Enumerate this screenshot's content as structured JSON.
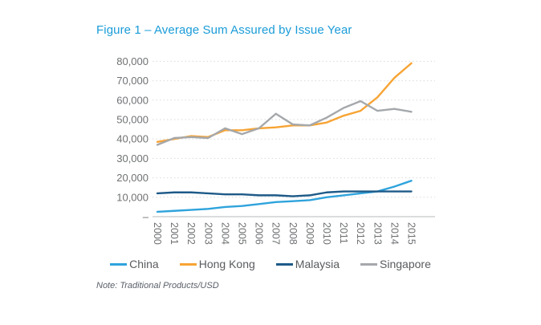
{
  "figure": {
    "title": "Figure 1 – Average Sum Assured by Issue Year",
    "note": "Note: Traditional Products/USD"
  },
  "chart_data": {
    "type": "line",
    "title": "Figure 1 – Average Sum Assured by Issue Year",
    "xlabel": "",
    "ylabel": "",
    "x": [
      2000,
      2001,
      2002,
      2003,
      2004,
      2005,
      2006,
      2007,
      2008,
      2009,
      2010,
      2011,
      2012,
      2013,
      2014,
      2015
    ],
    "ylim": [
      0,
      80000
    ],
    "y_tick_step": 10000,
    "y_tick_labels": [
      "–",
      "10,000",
      "20,000",
      "30,000",
      "40,000",
      "50,000",
      "60,000",
      "70,000",
      "80,000"
    ],
    "grid": "horizontal-dotted",
    "legend_position": "bottom",
    "axis_color": "#cfd1d2",
    "gridline_color": "#d9dadb",
    "tick_label_color": "#6f7173",
    "series": [
      {
        "name": "China",
        "color": "#2fa3dc",
        "values": [
          2500,
          3000,
          3500,
          4000,
          5000,
          5500,
          6500,
          7500,
          8000,
          8500,
          10000,
          11000,
          12000,
          13000,
          15500,
          18500
        ]
      },
      {
        "name": "Hong Kong",
        "color": "#f7a435",
        "values": [
          38500,
          40000,
          41500,
          41000,
          44500,
          44500,
          45500,
          46000,
          47000,
          47000,
          48500,
          52000,
          54500,
          61500,
          71500,
          79000
        ]
      },
      {
        "name": "Malaysia",
        "color": "#1e5a88",
        "values": [
          12000,
          12500,
          12500,
          12000,
          11500,
          11500,
          11000,
          11000,
          10500,
          11000,
          12500,
          13000,
          13000,
          13000,
          13000,
          13000
        ]
      },
      {
        "name": "Singapore",
        "color": "#a5a8ab",
        "values": [
          37000,
          40500,
          41000,
          40500,
          45500,
          42500,
          45500,
          53000,
          47500,
          47000,
          51000,
          56000,
          59500,
          54500,
          55500,
          54000
        ]
      }
    ]
  }
}
